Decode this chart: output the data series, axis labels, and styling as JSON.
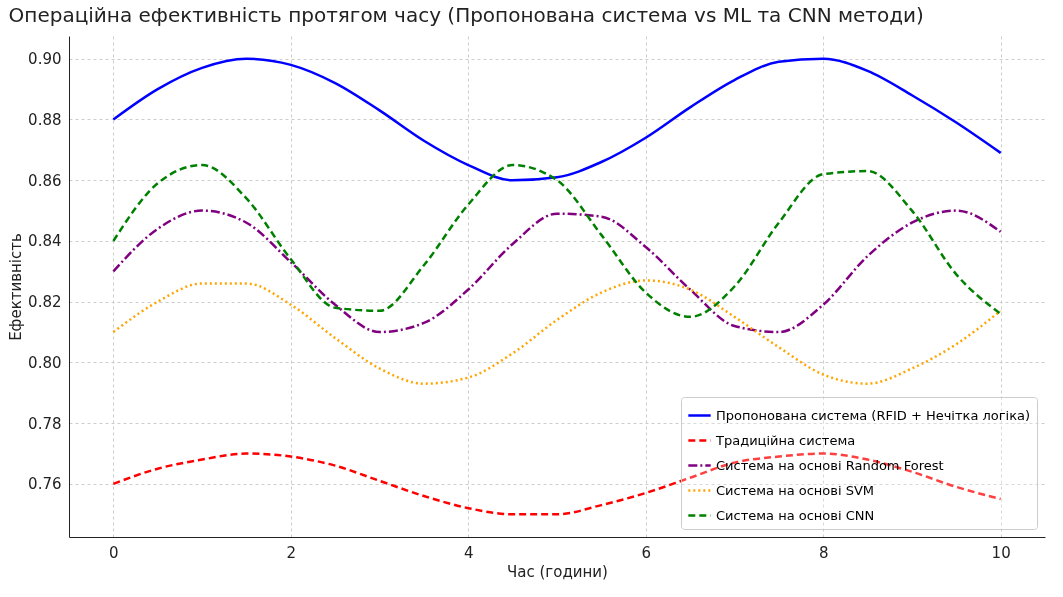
{
  "chart_data": {
    "type": "line",
    "title": "Операційна ефективність протягом часу (Пропонована система vs ML та CNN методи)",
    "xlabel": "Час (години)",
    "ylabel": "Ефективність",
    "x": [
      0,
      0.5,
      1,
      1.5,
      2,
      2.5,
      3,
      3.5,
      4,
      4.5,
      5,
      5.5,
      6,
      6.5,
      7,
      7.5,
      8,
      8.5,
      9,
      9.5,
      10
    ],
    "series": [
      {
        "name": "Пропонована система (RFID + Нечітка логіка)",
        "color": "#0000ff",
        "line_style": "solid",
        "values": [
          0.88,
          0.89,
          0.897,
          0.9,
          0.898,
          0.892,
          0.883,
          0.873,
          0.865,
          0.86,
          0.861,
          0.866,
          0.874,
          0.884,
          0.893,
          0.899,
          0.9,
          0.896,
          0.888,
          0.879,
          0.869
        ]
      },
      {
        "name": "Традиційна система",
        "color": "#ff0000",
        "line_style": "dashed",
        "values": [
          0.76,
          0.765,
          0.768,
          0.77,
          0.769,
          0.766,
          0.761,
          0.756,
          0.752,
          0.75,
          0.75,
          0.753,
          0.757,
          0.762,
          0.767,
          0.769,
          0.77,
          0.768,
          0.764,
          0.759,
          0.755
        ]
      },
      {
        "name": "Система на основі Random Forest",
        "color": "#800080",
        "line_style": "dashdot",
        "values": [
          0.83,
          0.844,
          0.85,
          0.846,
          0.833,
          0.819,
          0.81,
          0.813,
          0.824,
          0.839,
          0.849,
          0.848,
          0.838,
          0.824,
          0.812,
          0.81,
          0.819,
          0.835,
          0.846,
          0.85,
          0.843
        ]
      },
      {
        "name": "Система на основі SVM",
        "color": "#ffa500",
        "line_style": "dotted",
        "values": [
          0.81,
          0.82,
          0.826,
          0.826,
          0.819,
          0.808,
          0.798,
          0.793,
          0.795,
          0.803,
          0.814,
          0.823,
          0.827,
          0.824,
          0.815,
          0.805,
          0.796,
          0.793,
          0.798,
          0.806,
          0.817
        ]
      },
      {
        "name": "Система на основі CNN",
        "color": "#008000",
        "line_style": "dashed",
        "values": [
          0.84,
          0.859,
          0.865,
          0.854,
          0.834,
          0.818,
          0.817,
          0.832,
          0.852,
          0.865,
          0.86,
          0.842,
          0.823,
          0.815,
          0.825,
          0.846,
          0.862,
          0.863,
          0.85,
          0.829,
          0.816
        ]
      }
    ],
    "xlim": [
      -0.5,
      10.5
    ],
    "ylim": [
      0.7425,
      0.9075
    ],
    "xticks": [
      0,
      2,
      4,
      6,
      8,
      10
    ],
    "yticks": [
      {
        "value": 0.76,
        "label": "0.76"
      },
      {
        "value": 0.78,
        "label": "0.78"
      },
      {
        "value": 0.8,
        "label": "0.80"
      },
      {
        "value": 0.82,
        "label": "0.82"
      },
      {
        "value": 0.84,
        "label": "0.84"
      },
      {
        "value": 0.86,
        "label": "0.86"
      },
      {
        "value": 0.88,
        "label": "0.88"
      },
      {
        "value": 0.9,
        "label": "0.90"
      }
    ],
    "grid": true,
    "legend": "bottom right"
  }
}
